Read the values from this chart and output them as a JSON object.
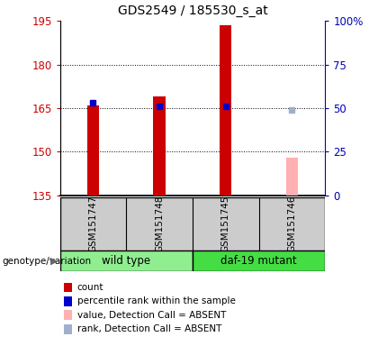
{
  "title": "GDS2549 / 185530_s_at",
  "samples": [
    "GSM151747",
    "GSM151748",
    "GSM151745",
    "GSM151746"
  ],
  "groups": [
    {
      "label": "wild type",
      "samples": [
        0,
        1
      ],
      "color": "#90ee90"
    },
    {
      "label": "daf-19 mutant",
      "samples": [
        2,
        3
      ],
      "color": "#44dd44"
    }
  ],
  "ylim_left": [
    135,
    195
  ],
  "ylim_right": [
    0,
    100
  ],
  "yticks_left": [
    135,
    150,
    165,
    180,
    195
  ],
  "yticks_right": [
    0,
    25,
    50,
    75,
    100
  ],
  "ytick_labels_right": [
    "0",
    "25",
    "50",
    "75",
    "100%"
  ],
  "grid_ticks": [
    150,
    165,
    180
  ],
  "red_bars": [
    166.0,
    169.0,
    193.5,
    null
  ],
  "blue_squares": [
    167.0,
    165.5,
    165.5,
    null
  ],
  "pink_bar": [
    null,
    null,
    null,
    148.0
  ],
  "lavender_square": [
    null,
    null,
    null,
    164.5
  ],
  "bar_width": 0.18,
  "red_color": "#cc0000",
  "blue_color": "#0000cc",
  "pink_color": "#ffb0b0",
  "lavender_color": "#a0b0cc",
  "axis_color_left": "#cc0000",
  "axis_color_right": "#0000bb",
  "label_bg_color": "#cccccc",
  "genotype_label": "genotype/variation",
  "legend_items": [
    {
      "color": "#cc0000",
      "label": "count"
    },
    {
      "color": "#0000cc",
      "label": "percentile rank within the sample"
    },
    {
      "color": "#ffb0b0",
      "label": "value, Detection Call = ABSENT"
    },
    {
      "color": "#a0b0cc",
      "label": "rank, Detection Call = ABSENT"
    }
  ]
}
